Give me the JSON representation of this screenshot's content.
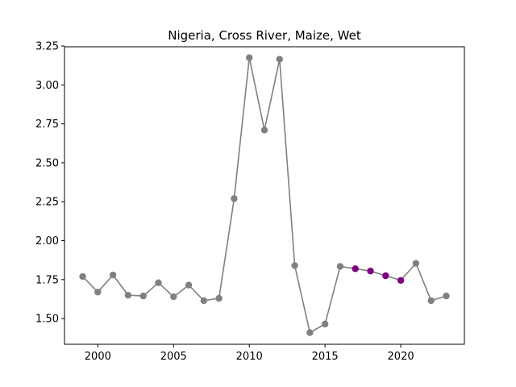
{
  "chart_data": {
    "type": "line",
    "title": "Nigeria, Cross River, Maize, Wet",
    "xlabel": "",
    "ylabel": "",
    "xlim": [
      1997.8,
      2024.2
    ],
    "ylim": [
      1.335,
      3.245
    ],
    "xticks": [
      2000,
      2005,
      2010,
      2015,
      2020
    ],
    "yticks": [
      1.5,
      1.75,
      2.0,
      2.25,
      2.5,
      2.75,
      3.0,
      3.25
    ],
    "ytick_labels": [
      "1.50",
      "1.75",
      "2.00",
      "2.25",
      "2.50",
      "2.75",
      "3.00",
      "3.25"
    ],
    "grid": false,
    "line_color": "#808080",
    "highlight_color": "#800080",
    "series": [
      {
        "x": [
          1999,
          2000,
          2001,
          2002,
          2003,
          2004,
          2005,
          2006,
          2007,
          2008,
          2009,
          2010,
          2011,
          2012,
          2013,
          2014,
          2015,
          2016,
          2017,
          2018,
          2019,
          2020,
          2021,
          2022,
          2023
        ],
        "values": [
          1.77,
          1.67,
          1.78,
          1.65,
          1.645,
          1.73,
          1.64,
          1.715,
          1.615,
          1.63,
          2.27,
          3.175,
          2.71,
          3.165,
          1.84,
          1.41,
          1.465,
          1.835,
          1.82,
          1.805,
          1.775,
          1.745,
          1.855,
          1.615,
          1.645
        ],
        "highlight": [
          false,
          false,
          false,
          false,
          false,
          false,
          false,
          false,
          false,
          false,
          false,
          false,
          false,
          false,
          false,
          false,
          false,
          false,
          true,
          true,
          true,
          true,
          false,
          false,
          false
        ]
      }
    ]
  }
}
